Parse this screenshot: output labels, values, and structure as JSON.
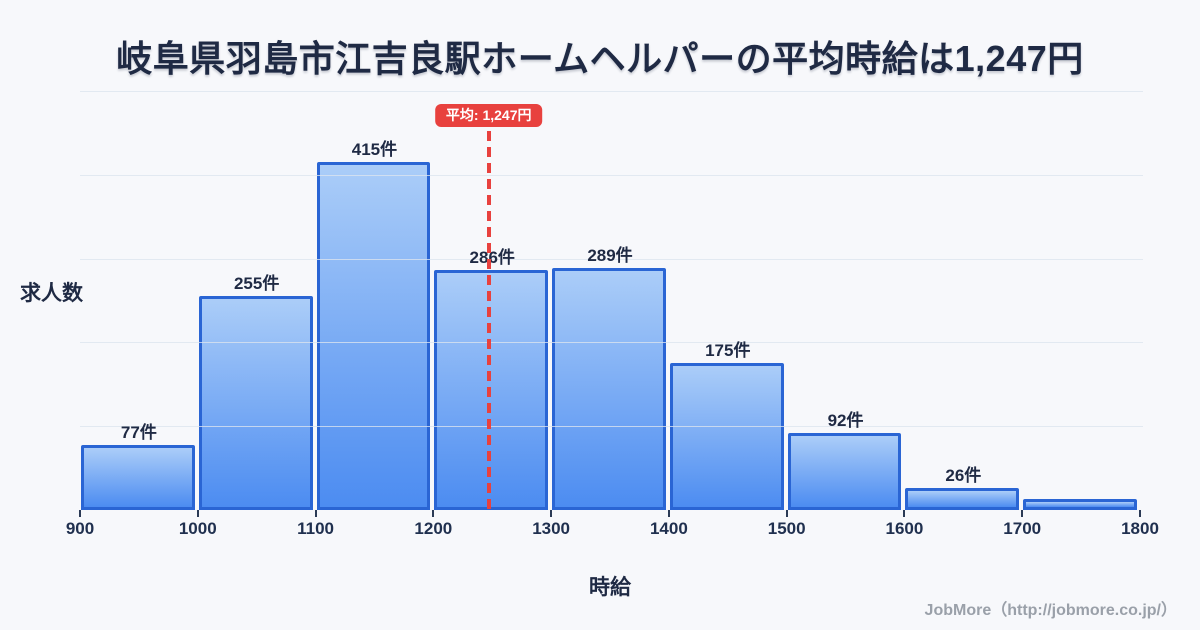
{
  "title": "岐阜県羽島市江吉良駅ホームヘルパーの平均時給は1,247円",
  "average_badge": {
    "label": "平均: 1,247円"
  },
  "chart_data": {
    "type": "bar",
    "subtype": "histogram",
    "title": "岐阜県羽島市江吉良駅ホームヘルパーの平均時給は1,247円",
    "xlabel": "時給",
    "ylabel": "求人数",
    "bin_edges": [
      900,
      1000,
      1100,
      1200,
      1300,
      1400,
      1500,
      1600,
      1700,
      1800
    ],
    "categories": [
      "900-1000",
      "1000-1100",
      "1100-1200",
      "1200-1300",
      "1300-1400",
      "1400-1500",
      "1500-1600",
      "1600-1700",
      "1700-1800"
    ],
    "values": [
      77,
      255,
      415,
      286,
      289,
      175,
      92,
      26,
      13
    ],
    "bar_labels": [
      "77件",
      "255件",
      "415件",
      "286件",
      "289件",
      "175件",
      "92件",
      "26件",
      ""
    ],
    "x_tick_labels": [
      "900",
      "1000",
      "1100",
      "1200",
      "1300",
      "1400",
      "1500",
      "1600",
      "1700",
      "1800"
    ],
    "average": {
      "value": 1247,
      "label": "平均: 1,247円"
    },
    "ylim": [
      0,
      500
    ],
    "grid": true,
    "gridline_step": 100,
    "legend": "none"
  },
  "footer": {
    "credit": "JobMore（http://jobmore.co.jp/）"
  },
  "colors": {
    "background": "#f7f8fb",
    "bar_fill_top": "#abcdf8",
    "bar_fill_bottom": "#4c8cf1",
    "bar_border": "#2a65d4",
    "average_red": "#e8413e",
    "text_dark": "#1f2a44",
    "gridline": "#dfe5ee",
    "footer_text": "#9aa0a9"
  }
}
